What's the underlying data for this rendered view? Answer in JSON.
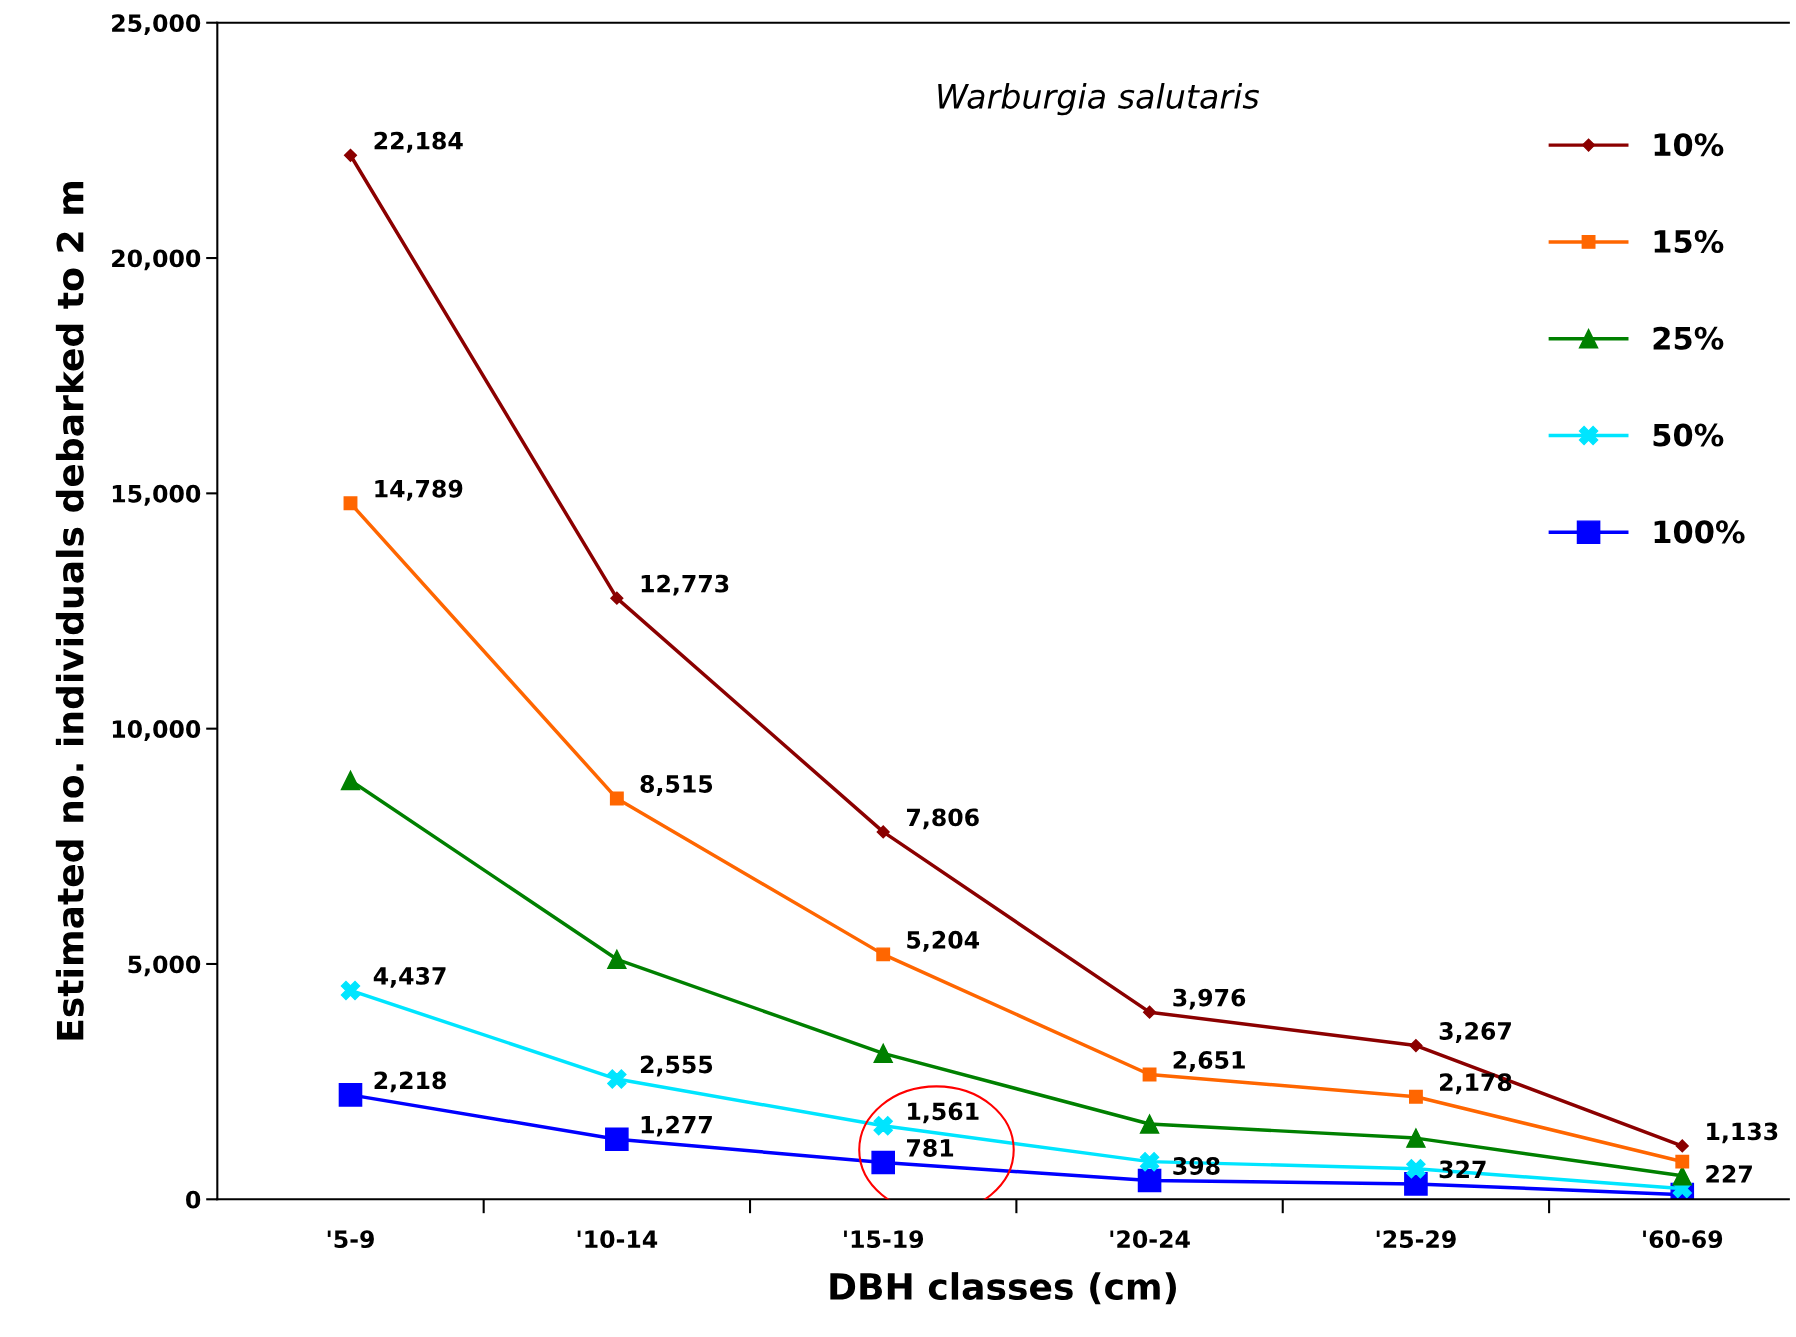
{
  "chart_data": {
    "type": "line",
    "title": "Warburgia salutaris",
    "xlabel": "DBH classes (cm)",
    "ylabel": "Estimated no. individuals debarked to 2 m",
    "categories": [
      "'5-9",
      "'10-14",
      "'15-19",
      "'20-24",
      "'25-29",
      "'60-69"
    ],
    "ylim": [
      0,
      25000
    ],
    "yticks": [
      {
        "value": 0,
        "label": "0"
      },
      {
        "value": 5000,
        "label": "5,000"
      },
      {
        "value": 10000,
        "label": "10,000"
      },
      {
        "value": 15000,
        "label": "15,000"
      },
      {
        "value": 20000,
        "label": "20,000"
      },
      {
        "value": 25000,
        "label": "25,000"
      }
    ],
    "grid": false,
    "legend": "top right",
    "series": [
      {
        "name": "10%",
        "color": "#8b0000",
        "marker": "diamond",
        "values": [
          22184,
          12773,
          7806,
          3976,
          3267,
          1133
        ],
        "value_labels": [
          "22,184",
          "12,773",
          "7,806",
          "3,976",
          "3,267",
          "1,133"
        ]
      },
      {
        "name": "15%",
        "color": "#ff6600",
        "marker": "square",
        "values": [
          14789,
          8515,
          5204,
          2651,
          2178,
          800
        ],
        "value_labels": [
          "14,789",
          "8,515",
          "5,204",
          "2,651",
          "2,178",
          null
        ]
      },
      {
        "name": "25%",
        "color": "#008000",
        "marker": "triangle",
        "values": [
          8900,
          5100,
          3100,
          1600,
          1300,
          500
        ]
      },
      {
        "name": "50%",
        "color": "#00e5ff",
        "marker": "cross",
        "values": [
          4437,
          2555,
          1561,
          800,
          650,
          227
        ],
        "value_labels": [
          "4,437",
          "2,555",
          "1,561",
          null,
          null,
          "227"
        ]
      },
      {
        "name": "100%",
        "color": "#0000ff",
        "marker": "square",
        "values": [
          2218,
          1277,
          781,
          398,
          327,
          100
        ],
        "value_labels": [
          "2,218",
          "1,277",
          "781",
          "398",
          "327",
          null
        ]
      }
    ]
  }
}
